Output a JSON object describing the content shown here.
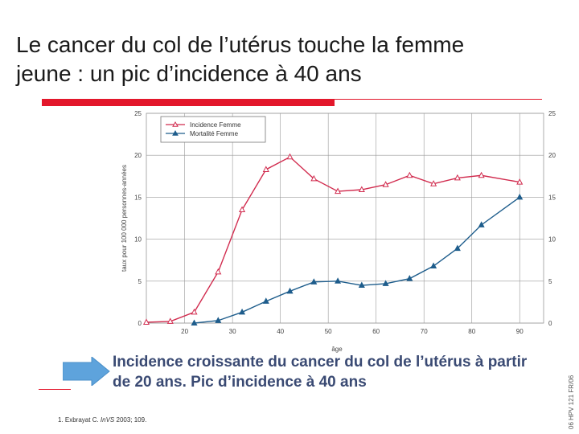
{
  "slide": {
    "title_line1": "Le cancer du col de l’utérus touche la femme",
    "title_line2": "jeune : un pic d’incidence à 40 ans",
    "caption_line1": "Incidence croissante du cancer du col de l’utérus à partir",
    "caption_line2": "de 20 ans. Pic d’incidence à 40 ans",
    "reference_prefix": "1. Exbrayat C. ",
    "reference_journal": "InVS",
    "reference_suffix": " 2003; 109.",
    "side_code": "06 HPV 121 FR/06",
    "colors": {
      "accent": "#e3172b",
      "caption": "#3a4a73",
      "arrow": "#5ea3dc"
    }
  },
  "chart_data": {
    "type": "line",
    "xlabel": "âge",
    "ylabel": "taux pour 100 000 personnes-années",
    "xlim": [
      12,
      95
    ],
    "ylim": [
      0,
      25
    ],
    "x_ticks": [
      "20",
      "30",
      "40",
      "50",
      "60",
      "70",
      "80",
      "90"
    ],
    "y_ticks": [
      "0",
      "5",
      "10",
      "15",
      "20",
      "25"
    ],
    "grid": true,
    "legend_position": "top-left",
    "series": [
      {
        "name": "Incidence Femme",
        "color": "#d12b4e",
        "marker": "triangle-open",
        "points": [
          [
            12,
            0.1
          ],
          [
            17,
            0.2
          ],
          [
            22,
            1.3
          ],
          [
            27,
            6.1
          ],
          [
            32,
            13.5
          ],
          [
            37,
            18.3
          ],
          [
            42,
            19.8
          ],
          [
            47,
            17.2
          ],
          [
            52,
            15.7
          ],
          [
            57,
            15.9
          ],
          [
            62,
            16.5
          ],
          [
            67,
            17.6
          ],
          [
            72,
            16.6
          ],
          [
            77,
            17.3
          ],
          [
            82,
            17.6
          ],
          [
            90,
            16.8
          ]
        ]
      },
      {
        "name": "Mortalité Femme",
        "color": "#1e5d8c",
        "marker": "triangle-filled",
        "points": [
          [
            22,
            0.0
          ],
          [
            27,
            0.3
          ],
          [
            32,
            1.3
          ],
          [
            37,
            2.6
          ],
          [
            42,
            3.8
          ],
          [
            47,
            4.9
          ],
          [
            52,
            5.0
          ],
          [
            57,
            4.5
          ],
          [
            62,
            4.7
          ],
          [
            67,
            5.3
          ],
          [
            72,
            6.8
          ],
          [
            77,
            8.9
          ],
          [
            82,
            11.7
          ],
          [
            90,
            15.0
          ]
        ]
      }
    ]
  }
}
